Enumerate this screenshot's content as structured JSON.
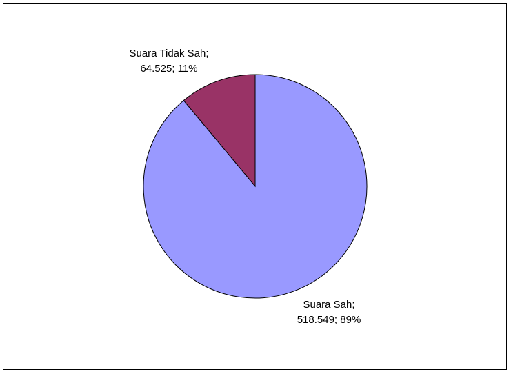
{
  "chart_data": {
    "type": "pie",
    "title": "",
    "slices": [
      {
        "label": "Suara Tidak Sah",
        "value_text": "64.525",
        "value": 64525,
        "percent_text": "11%",
        "color": "#993366"
      },
      {
        "label": "Suara Sah",
        "value_text": "518.549",
        "value": 518549,
        "percent_text": "89%",
        "color": "#9999FF"
      }
    ],
    "start_angle": "12 o'clock",
    "direction": "counterclockwise for first slice",
    "legend": "none",
    "data_labels": [
      "Suara Tidak Sah;",
      "64.525; 11%",
      "Suara Sah;",
      "518.549; 89%"
    ]
  }
}
